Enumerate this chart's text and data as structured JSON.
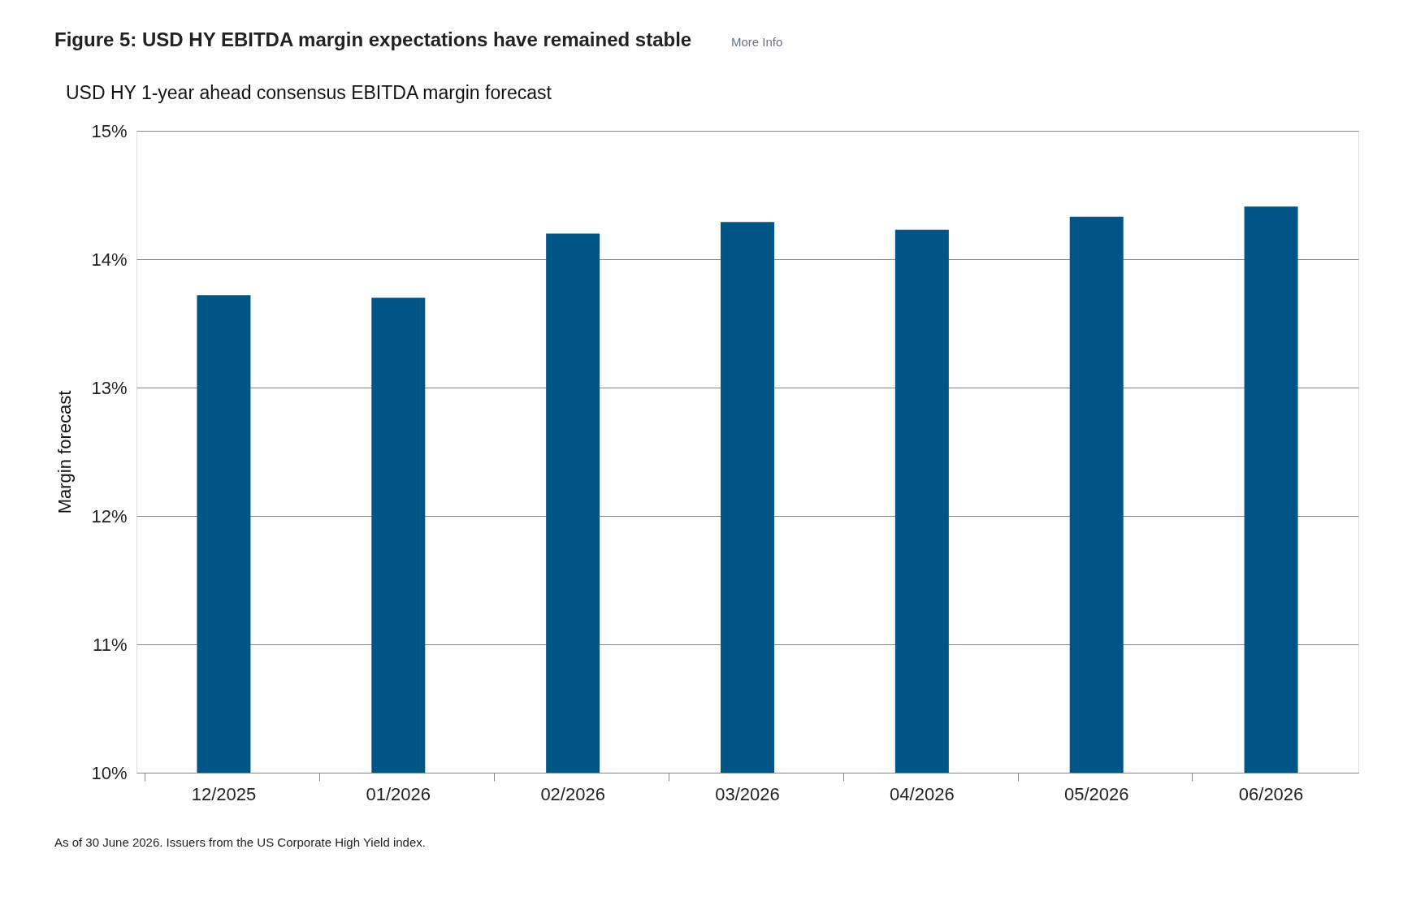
{
  "chart_data": {
    "type": "bar",
    "title": "Figure 5: USD HY EBITDA margin expectations have remained stable",
    "subtitle": "USD HY 1-year ahead consensus EBITDA margin forecast",
    "ylabel": "Margin forecast",
    "categories": [
      "12/2025",
      "01/2026",
      "02/2026",
      "03/2026",
      "04/2026",
      "05/2026",
      "06/2026"
    ],
    "values": [
      13.72,
      13.7,
      14.2,
      14.29,
      14.23,
      14.33,
      14.41
    ],
    "color": "#005587",
    "ylim": [
      10,
      15
    ],
    "yticks": [
      {
        "value": 10,
        "label": "10%"
      },
      {
        "value": 11,
        "label": "11%"
      },
      {
        "value": 12,
        "label": "12%"
      },
      {
        "value": 13,
        "label": "13%"
      },
      {
        "value": 14,
        "label": "14%"
      },
      {
        "value": 15,
        "label": "15%"
      }
    ],
    "grid": "y",
    "annotations": [
      "More Info",
      "As of 30 June 2026. Issuers from the US Corporate High Yield index."
    ]
  }
}
